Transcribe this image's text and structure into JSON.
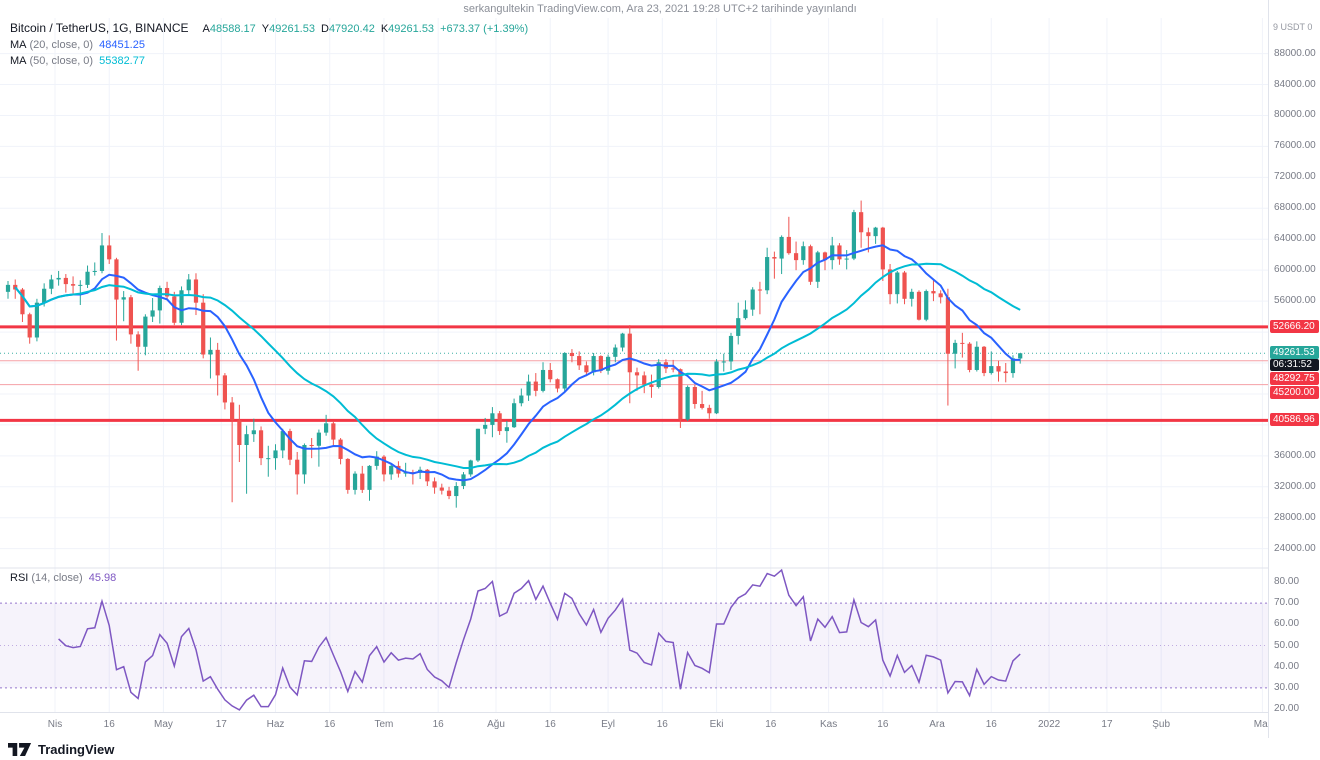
{
  "meta": {
    "attribution": "serkangultekin TradingView.com, Ara 23, 2021 19:28 UTC+2 tarihinde yayınlandı"
  },
  "legend": {
    "title": "Bitcoin / TetherUS, 1G, BINANCE",
    "ohlc": [
      {
        "label": "A",
        "value": "48588.17"
      },
      {
        "label": "Y",
        "value": "49261.53"
      },
      {
        "label": "D",
        "value": "47920.42"
      },
      {
        "label": "K",
        "value": "49261.53"
      }
    ],
    "change": "+673.37 (+1.39%)",
    "ma20": {
      "name": "MA",
      "params": "(20, close, 0)",
      "value": "48451.25",
      "color": "#2962ff"
    },
    "ma50": {
      "name": "MA",
      "params": "(50, close, 0)",
      "value": "55382.77",
      "color": "#00bcd4"
    },
    "rsi": {
      "name": "RSI",
      "params": "(14, close)",
      "value": "45.98",
      "color": "#7e57c2"
    }
  },
  "price_axis": {
    "header": "9 USDT 0",
    "ticks": [
      {
        "label": "88000.00",
        "value": 88000
      },
      {
        "label": "84000.00",
        "value": 84000
      },
      {
        "label": "80000.00",
        "value": 80000
      },
      {
        "label": "76000.00",
        "value": 76000
      },
      {
        "label": "72000.00",
        "value": 72000
      },
      {
        "label": "68000.00",
        "value": 68000
      },
      {
        "label": "64000.00",
        "value": 64000
      },
      {
        "label": "60000.00",
        "value": 60000
      },
      {
        "label": "56000.00",
        "value": 56000
      },
      {
        "label": "52000.00",
        "value": 52000
      },
      {
        "label": "48000.00",
        "value": 48000
      },
      {
        "label": "44000.00",
        "value": 44000
      },
      {
        "label": "40000.00",
        "value": 40000
      },
      {
        "label": "36000.00",
        "value": 36000
      },
      {
        "label": "32000.00",
        "value": 32000
      },
      {
        "label": "28000.00",
        "value": 28000
      },
      {
        "label": "24000.00",
        "value": 24000
      }
    ],
    "levels": [
      {
        "label": "52666.20",
        "price": 52666.2,
        "bg": "#f23645"
      },
      {
        "label": "49261.53",
        "price": 49261.53,
        "bg": "#26a69a",
        "countdown": "06:31:52"
      },
      {
        "label": "48292.75",
        "price": 48292.75,
        "bg": "#f23645"
      },
      {
        "label": "45200.00",
        "price": 45200.0,
        "bg": "#f23645"
      },
      {
        "label": "40586.96",
        "price": 40586.96,
        "bg": "#f23645"
      }
    ]
  },
  "rsi_axis": {
    "ticks": [
      {
        "label": "80.00",
        "value": 80
      },
      {
        "label": "70.00",
        "value": 70
      },
      {
        "label": "60.00",
        "value": 60
      },
      {
        "label": "50.00",
        "value": 50
      },
      {
        "label": "40.00",
        "value": 40
      },
      {
        "label": "30.00",
        "value": 30
      },
      {
        "label": "20.00",
        "value": 20
      }
    ]
  },
  "time_axis": {
    "ticks": [
      {
        "label": "Nis",
        "day": 13
      },
      {
        "label": "16",
        "day": 28
      },
      {
        "label": "May",
        "day": 43
      },
      {
        "label": "17",
        "day": 59
      },
      {
        "label": "Haz",
        "day": 74
      },
      {
        "label": "16",
        "day": 89
      },
      {
        "label": "Tem",
        "day": 104
      },
      {
        "label": "16",
        "day": 119
      },
      {
        "label": "Ağu",
        "day": 135
      },
      {
        "label": "16",
        "day": 150
      },
      {
        "label": "Eyl",
        "day": 166
      },
      {
        "label": "16",
        "day": 181
      },
      {
        "label": "Eki",
        "day": 196
      },
      {
        "label": "16",
        "day": 211
      },
      {
        "label": "Kas",
        "day": 227
      },
      {
        "label": "16",
        "day": 242
      },
      {
        "label": "Ara",
        "day": 257
      },
      {
        "label": "16",
        "day": 272
      },
      {
        "label": "2022",
        "day": 288
      },
      {
        "label": "17",
        "day": 304
      },
      {
        "label": "Şub",
        "day": 319
      },
      {
        "label": "Mar",
        "day": 347
      }
    ]
  },
  "footer": {
    "logo_text": "TradingView"
  },
  "chart_data": [
    {
      "type": "candlestick",
      "title": "Bitcoin / TetherUS, 1G, BINANCE",
      "x_start_date": "2021-03-19",
      "x_interval_days": 2,
      "ylim": [
        21500,
        92600
      ],
      "last_price": 49261.53,
      "colors": {
        "up": "#26a69a",
        "down": "#ef5350",
        "level_major": "#f23645",
        "level_minor": "#f5a0a6",
        "grid": "#f0f3fa"
      },
      "h_lines": [
        {
          "price": 52666.2,
          "style": "major"
        },
        {
          "price": 48292.75,
          "style": "minor"
        },
        {
          "price": 45200.0,
          "style": "minor"
        },
        {
          "price": 40586.96,
          "style": "major"
        }
      ],
      "overlays": [
        {
          "name": "MA 20",
          "window_bars": 10,
          "color": "#2962ff",
          "value": 48451.25
        },
        {
          "name": "MA 50",
          "window_bars": 25,
          "color": "#00bcd4",
          "value": 55382.77
        }
      ],
      "ohlc": [
        [
          57200,
          58600,
          56300,
          58100
        ],
        [
          58100,
          58800,
          56300,
          57500
        ],
        [
          57500,
          57700,
          53300,
          54300
        ],
        [
          54300,
          54500,
          50500,
          51300
        ],
        [
          51300,
          56300,
          50800,
          55800
        ],
        [
          55800,
          58300,
          55300,
          57600
        ],
        [
          57600,
          59400,
          56900,
          58800
        ],
        [
          58800,
          59900,
          58000,
          59000
        ],
        [
          59000,
          59500,
          57100,
          58200
        ],
        [
          58200,
          59200,
          57000,
          58000
        ],
        [
          58000,
          58700,
          55500,
          58100
        ],
        [
          58100,
          60600,
          57700,
          59800
        ],
        [
          59800,
          61000,
          59300,
          59900
        ],
        [
          59900,
          64800,
          59600,
          63200
        ],
        [
          63200,
          64500,
          60800,
          61400
        ],
        [
          61400,
          61600,
          50900,
          56200
        ],
        [
          56200,
          57300,
          53400,
          56500
        ],
        [
          56500,
          56800,
          50500,
          51700
        ],
        [
          51700,
          52100,
          47000,
          50100
        ],
        [
          50100,
          54300,
          49000,
          54000
        ],
        [
          54000,
          56400,
          53300,
          54800
        ],
        [
          54800,
          58000,
          53100,
          57700
        ],
        [
          57700,
          58500,
          56200,
          56600
        ],
        [
          56600,
          57200,
          52900,
          53200
        ],
        [
          53200,
          57900,
          52900,
          57400
        ],
        [
          57400,
          59500,
          56800,
          58800
        ],
        [
          58800,
          59600,
          54200,
          55800
        ],
        [
          55800,
          56900,
          48600,
          49100
        ],
        [
          49100,
          51300,
          46000,
          49700
        ],
        [
          49700,
          50600,
          43800,
          46400
        ],
        [
          46400,
          46700,
          42000,
          42900
        ],
        [
          42900,
          43600,
          30000,
          40600
        ],
        [
          40600,
          42600,
          35200,
          37400
        ],
        [
          37400,
          39900,
          31100,
          38800
        ],
        [
          38800,
          40800,
          37800,
          39300
        ],
        [
          39300,
          39800,
          34800,
          35700
        ],
        [
          35700,
          37300,
          33300,
          35700
        ],
        [
          35700,
          37500,
          34200,
          36700
        ],
        [
          36700,
          39500,
          35700,
          39200
        ],
        [
          39200,
          39500,
          34800,
          35500
        ],
        [
          35500,
          36500,
          31000,
          33600
        ],
        [
          33600,
          37600,
          32400,
          37400
        ],
        [
          37400,
          38300,
          35700,
          37300
        ],
        [
          37300,
          39400,
          34600,
          39000
        ],
        [
          39000,
          41300,
          38600,
          40200
        ],
        [
          40200,
          40500,
          37400,
          38100
        ],
        [
          38100,
          38300,
          34900,
          35600
        ],
        [
          35600,
          35700,
          31100,
          31600
        ],
        [
          31600,
          34000,
          31000,
          33700
        ],
        [
          33700,
          34700,
          31200,
          31600
        ],
        [
          31600,
          34800,
          30200,
          34700
        ],
        [
          34700,
          36600,
          34200,
          35900
        ],
        [
          35900,
          36100,
          32700,
          33600
        ],
        [
          33600,
          35000,
          32900,
          34700
        ],
        [
          34700,
          35300,
          33200,
          33700
        ],
        [
          33700,
          35100,
          33300,
          33900
        ],
        [
          33900,
          34200,
          32300,
          33800
        ],
        [
          33800,
          34600,
          33000,
          34200
        ],
        [
          34200,
          34300,
          32100,
          32700
        ],
        [
          32700,
          33200,
          31100,
          31900
        ],
        [
          31900,
          32400,
          31000,
          31500
        ],
        [
          31500,
          32000,
          30400,
          30800
        ],
        [
          30800,
          32600,
          29300,
          32100
        ],
        [
          32100,
          33900,
          31700,
          33600
        ],
        [
          33600,
          35500,
          33300,
          35400
        ],
        [
          35400,
          39500,
          35200,
          39500
        ],
        [
          39500,
          40900,
          38800,
          40000
        ],
        [
          40000,
          42300,
          38400,
          41500
        ],
        [
          41500,
          41800,
          38700,
          39200
        ],
        [
          39200,
          40500,
          37700,
          39700
        ],
        [
          39700,
          43400,
          39600,
          42800
        ],
        [
          42800,
          44700,
          42400,
          43800
        ],
        [
          43800,
          46500,
          43100,
          45600
        ],
        [
          45600,
          46700,
          43700,
          44400
        ],
        [
          44400,
          48100,
          44200,
          47100
        ],
        [
          47100,
          48000,
          45500,
          45900
        ],
        [
          45900,
          46000,
          44200,
          44700
        ],
        [
          44700,
          49400,
          44300,
          49300
        ],
        [
          49300,
          49800,
          48100,
          48900
        ],
        [
          48900,
          49500,
          47100,
          47700
        ],
        [
          47700,
          48200,
          46300,
          46800
        ],
        [
          46800,
          49300,
          46400,
          48900
        ],
        [
          48900,
          49000,
          46700,
          47000
        ],
        [
          47000,
          49100,
          46500,
          48800
        ],
        [
          48800,
          50400,
          48100,
          50000
        ],
        [
          50000,
          51900,
          49500,
          51800
        ],
        [
          51800,
          52900,
          42800,
          46800
        ],
        [
          46800,
          47400,
          44400,
          46400
        ],
        [
          46400,
          46900,
          44100,
          45200
        ],
        [
          45200,
          46500,
          43500,
          44900
        ],
        [
          44900,
          48500,
          44700,
          48100
        ],
        [
          48100,
          48500,
          46700,
          47300
        ],
        [
          47300,
          48400,
          46800,
          47200
        ],
        [
          47200,
          47300,
          39600,
          40700
        ],
        [
          40700,
          45100,
          40500,
          44900
        ],
        [
          44900,
          45200,
          42100,
          42700
        ],
        [
          42700,
          44400,
          42000,
          42200
        ],
        [
          42200,
          42600,
          40800,
          41500
        ],
        [
          41500,
          48500,
          41400,
          48200
        ],
        [
          48200,
          49200,
          46900,
          48200
        ],
        [
          48200,
          51900,
          47100,
          51500
        ],
        [
          51500,
          55800,
          50400,
          53800
        ],
        [
          53800,
          56100,
          53600,
          54900
        ],
        [
          54900,
          57800,
          54100,
          57500
        ],
        [
          57500,
          58500,
          54300,
          57400
        ],
        [
          57400,
          62900,
          56900,
          61700
        ],
        [
          61700,
          62400,
          58900,
          61500
        ],
        [
          61500,
          64500,
          59500,
          64300
        ],
        [
          64300,
          66900,
          62000,
          62200
        ],
        [
          62200,
          63700,
          60000,
          61300
        ],
        [
          61300,
          63700,
          60700,
          63100
        ],
        [
          63100,
          63300,
          58100,
          58500
        ],
        [
          58500,
          62500,
          57700,
          62300
        ],
        [
          62300,
          62400,
          60000,
          61300
        ],
        [
          61300,
          64300,
          60100,
          63200
        ],
        [
          63200,
          63500,
          60700,
          61400
        ],
        [
          61400,
          62600,
          60100,
          61500
        ],
        [
          61500,
          67800,
          61300,
          67500
        ],
        [
          67500,
          69000,
          62900,
          64900
        ],
        [
          64900,
          65500,
          62300,
          64400
        ],
        [
          64400,
          65600,
          63400,
          65500
        ],
        [
          65500,
          65600,
          58600,
          60100
        ],
        [
          60100,
          60800,
          55600,
          56900
        ],
        [
          56900,
          59900,
          55700,
          59700
        ],
        [
          59700,
          59900,
          55600,
          56300
        ],
        [
          56300,
          57600,
          55300,
          57200
        ],
        [
          57200,
          57400,
          53500,
          53600
        ],
        [
          53600,
          57500,
          53400,
          57300
        ],
        [
          57300,
          58900,
          56000,
          57000
        ],
        [
          57000,
          57400,
          55700,
          56500
        ],
        [
          56500,
          57600,
          42500,
          49200
        ],
        [
          49200,
          51000,
          47300,
          50600
        ],
        [
          50600,
          51900,
          48700,
          50500
        ],
        [
          50500,
          50700,
          46800,
          47100
        ],
        [
          47100,
          50800,
          46900,
          50100
        ],
        [
          50100,
          50200,
          46300,
          46700
        ],
        [
          46700,
          49500,
          46500,
          47600
        ],
        [
          47600,
          48300,
          45600,
          46900
        ],
        [
          46900,
          48000,
          45500,
          46700
        ],
        [
          46700,
          49000,
          46100,
          48600
        ],
        [
          48588.17,
          49261.53,
          47920.42,
          49261.53
        ]
      ]
    },
    {
      "type": "line",
      "name": "RSI (14, close)",
      "value": 45.98,
      "color": "#7e57c2",
      "period_bars": 7,
      "bands": {
        "upper": 70,
        "middle": 50,
        "lower": 30
      },
      "ylim": [
        18.6,
        86.6
      ]
    }
  ]
}
